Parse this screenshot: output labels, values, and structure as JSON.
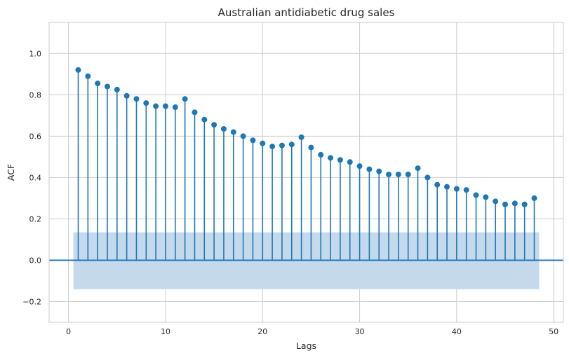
{
  "chart_data": {
    "type": "stem",
    "title": "Australian antidiabetic drug sales",
    "xlabel": "Lags",
    "ylabel": "ACF",
    "xlim": [
      -2,
      51
    ],
    "ylim": [
      -0.3,
      1.15
    ],
    "xticks": [
      0,
      10,
      20,
      30,
      40,
      50
    ],
    "xtick_labels": [
      "0",
      "10",
      "20",
      "30",
      "40",
      "50"
    ],
    "yticks": [
      -0.2,
      0.0,
      0.2,
      0.4,
      0.6,
      0.8,
      1.0
    ],
    "ytick_labels": [
      "−0.2",
      "0.0",
      "0.2",
      "0.4",
      "0.6",
      "0.8",
      "1.0"
    ],
    "grid": true,
    "series": [
      {
        "x": [
          1,
          2,
          3,
          4,
          5,
          6,
          7,
          8,
          9,
          10,
          11,
          12,
          13,
          14,
          15,
          16,
          17,
          18,
          19,
          20,
          21,
          22,
          23,
          24,
          25,
          26,
          27,
          28,
          29,
          30,
          31,
          32,
          33,
          34,
          35,
          36,
          37,
          38,
          39,
          40,
          41,
          42,
          43,
          44,
          45,
          46,
          47,
          48
        ],
        "values": [
          0.92,
          0.89,
          0.855,
          0.84,
          0.825,
          0.795,
          0.78,
          0.76,
          0.745,
          0.745,
          0.74,
          0.78,
          0.715,
          0.68,
          0.655,
          0.635,
          0.62,
          0.6,
          0.58,
          0.565,
          0.55,
          0.555,
          0.56,
          0.595,
          0.545,
          0.51,
          0.495,
          0.485,
          0.475,
          0.455,
          0.44,
          0.43,
          0.415,
          0.415,
          0.415,
          0.445,
          0.4,
          0.365,
          0.355,
          0.345,
          0.34,
          0.315,
          0.305,
          0.285,
          0.27,
          0.275,
          0.27,
          0.3
        ]
      }
    ],
    "confidence_band": {
      "x_start": 0.5,
      "x_end": 48.5,
      "lower": -0.14,
      "upper": 0.135
    },
    "colors": {
      "stem": "#1f77b4",
      "band": "#c4d9ec",
      "zero_line": "#1f77b4"
    }
  }
}
